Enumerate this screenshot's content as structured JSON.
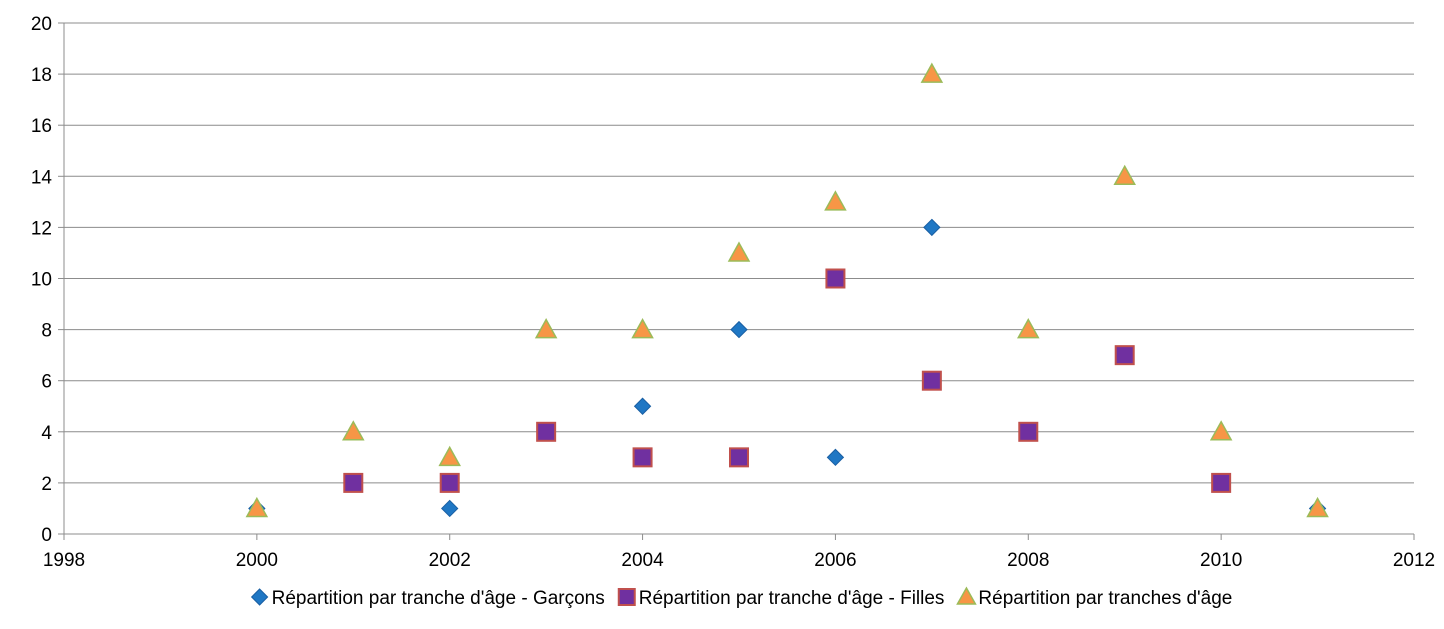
{
  "chart_data": {
    "type": "scatter",
    "xlim": [
      1998,
      2012
    ],
    "ylim": [
      0,
      20
    ],
    "xticks": [
      "1998",
      "2000",
      "2002",
      "2004",
      "2006",
      "2008",
      "2010",
      "2012"
    ],
    "yticks": [
      "0",
      "2",
      "4",
      "6",
      "8",
      "10",
      "12",
      "14",
      "16",
      "18",
      "20"
    ],
    "grid": "horizontal",
    "legend_position": "bottom",
    "series": [
      {
        "name": "Répartition par tranche d'âge - Garçons",
        "marker": "diamond",
        "color": "#1f77c4",
        "points": [
          [
            2000,
            1
          ],
          [
            2002,
            1
          ],
          [
            2004,
            5
          ],
          [
            2005,
            8
          ],
          [
            2006,
            3
          ],
          [
            2007,
            12
          ],
          [
            2011,
            1
          ]
        ]
      },
      {
        "name": "Répartition par tranche d'âge - Filles",
        "marker": "square",
        "color": "#7030a0",
        "stroke": "#c0504d",
        "points": [
          [
            2001,
            2
          ],
          [
            2002,
            2
          ],
          [
            2003,
            4
          ],
          [
            2004,
            3
          ],
          [
            2005,
            3
          ],
          [
            2006,
            10
          ],
          [
            2007,
            6
          ],
          [
            2008,
            4
          ],
          [
            2009,
            7
          ],
          [
            2010,
            2
          ]
        ]
      },
      {
        "name": "Répartition par tranches d'âge",
        "marker": "triangle",
        "color": "#f79646",
        "stroke": "#9bbb59",
        "points": [
          [
            2000,
            1
          ],
          [
            2001,
            4
          ],
          [
            2002,
            3
          ],
          [
            2003,
            8
          ],
          [
            2004,
            8
          ],
          [
            2005,
            11
          ],
          [
            2006,
            13
          ],
          [
            2007,
            18
          ],
          [
            2008,
            8
          ],
          [
            2009,
            14
          ],
          [
            2010,
            4
          ],
          [
            2011,
            1
          ]
        ]
      }
    ]
  }
}
